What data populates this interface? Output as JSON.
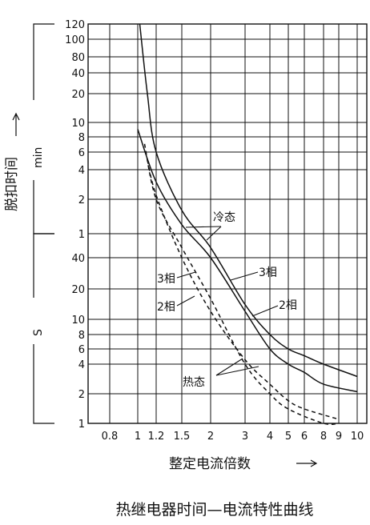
{
  "chart_data": {
    "type": "line",
    "title": "热继电器时间—电流特性曲线",
    "xlabel": "整定电流倍数",
    "ylabel": "脱扣时间",
    "unit_upper": "min",
    "unit_lower": "S",
    "x_ticks": [
      "0.8",
      "1",
      "1.2",
      "1.5",
      "2",
      "3",
      "4",
      "5",
      "6",
      "8",
      "9",
      "10"
    ],
    "y_ticks_min": [
      "120",
      "100",
      "80",
      "40",
      "20",
      "10",
      "8",
      "6",
      "4",
      "2",
      "1"
    ],
    "y_ticks_s": [
      "40",
      "20",
      "10",
      "8",
      "6",
      "4",
      "2",
      "1"
    ],
    "state_labels": {
      "cold": "冷态",
      "hot": "热态"
    },
    "series": [
      {
        "name": "3相",
        "state": "冷态",
        "style": "solid",
        "points": [
          [
            1.02,
            "120 min"
          ],
          [
            1.1,
            "20 min"
          ],
          [
            1.2,
            "6 min"
          ],
          [
            1.5,
            "1.6 min"
          ],
          [
            2,
            "50 s"
          ],
          [
            3,
            "14 s"
          ],
          [
            4,
            "8 s"
          ],
          [
            5,
            "6 s"
          ],
          [
            6,
            "5 s"
          ],
          [
            8,
            "4 s"
          ],
          [
            10,
            "3 s"
          ]
        ]
      },
      {
        "name": "2相",
        "state": "冷态",
        "style": "solid",
        "points": [
          [
            1.0,
            "9 min"
          ],
          [
            1.2,
            "3 min"
          ],
          [
            1.5,
            "1.2 min"
          ],
          [
            2,
            "40 s"
          ],
          [
            3,
            "12 s"
          ],
          [
            4,
            "6 s"
          ],
          [
            5,
            "4 s"
          ],
          [
            6,
            "3.3 s"
          ],
          [
            8,
            "2.5 s"
          ],
          [
            10,
            "2.1 s"
          ]
        ]
      },
      {
        "name": "3相",
        "state": "热态",
        "style": "dashed",
        "points": [
          [
            1.07,
            "7 min"
          ],
          [
            1.2,
            "2 min"
          ],
          [
            1.5,
            "50 s"
          ],
          [
            2,
            "16 s"
          ],
          [
            3,
            "4 s"
          ],
          [
            4,
            "2 s"
          ],
          [
            5,
            "1.4 s"
          ],
          [
            8,
            "1 s"
          ],
          [
            9,
            "1 s"
          ]
        ]
      },
      {
        "name": "2相",
        "state": "热态",
        "style": "dashed",
        "points": [
          [
            1.1,
            "5 min"
          ],
          [
            1.2,
            "2.2 min"
          ],
          [
            1.5,
            "40 s"
          ],
          [
            2,
            "12 s"
          ],
          [
            3,
            "4.5 s"
          ],
          [
            4,
            "2.5 s"
          ],
          [
            5,
            "1.7 s"
          ],
          [
            6,
            "1.4 s"
          ],
          [
            9,
            "1.1 s"
          ]
        ]
      }
    ]
  }
}
